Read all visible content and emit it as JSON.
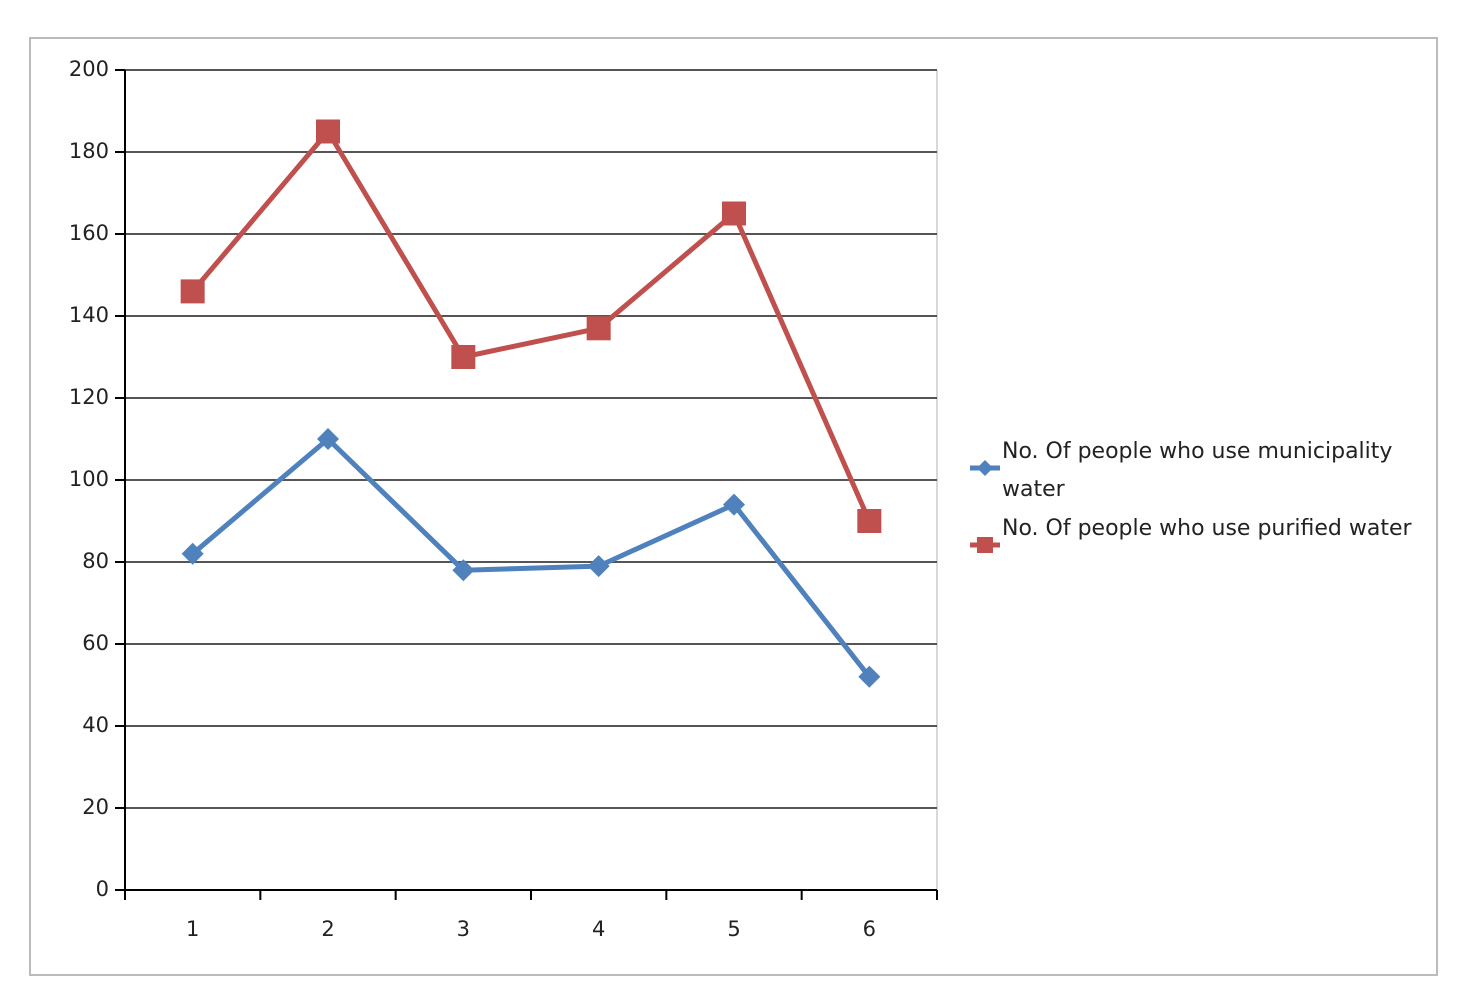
{
  "chart_data": {
    "type": "line",
    "categories": [
      "1",
      "2",
      "3",
      "4",
      "5",
      "6"
    ],
    "series": [
      {
        "name": "No. Of people who use municipality water",
        "color": "#4f81bd",
        "marker": "diamond",
        "values": [
          82,
          110,
          78,
          79,
          94,
          52
        ]
      },
      {
        "name": "No. Of people who use purified water",
        "color": "#c0504d",
        "marker": "square",
        "values": [
          146,
          185,
          130,
          137,
          165,
          90
        ]
      }
    ],
    "ylim": [
      0,
      200
    ],
    "yticks": [
      0,
      20,
      40,
      60,
      80,
      100,
      120,
      140,
      160,
      180,
      200
    ],
    "grid": true,
    "legend": "right"
  }
}
